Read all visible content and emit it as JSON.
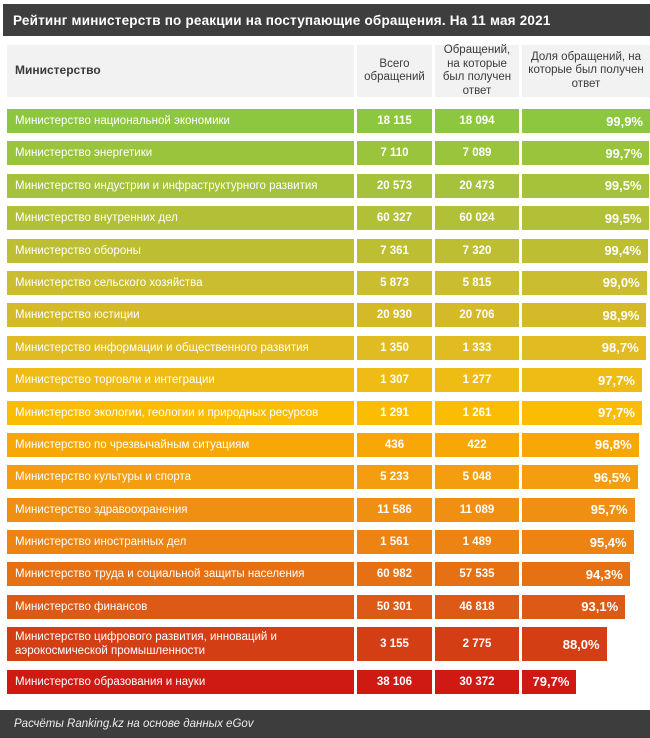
{
  "title": "Рейтинг министерств по реакции на поступающие обращения. На 11 мая 2021",
  "footer_note": "Расчёты Ranking.kz на основе данных eGov",
  "columns": {
    "ministry": "Министерство",
    "total": "Всего обращений",
    "answered": "Обращений, на которые был получен ответ",
    "share": "Доля обращений, на которые был получен ответ"
  },
  "colors": {
    "title_bg": "#3e3e3e",
    "footer_bg": "#3d3d3d",
    "header_bg": "#f2f2f2",
    "text_light": "#ffffff",
    "text_dark": "#3a3a3a"
  },
  "chart_data": {
    "type": "table",
    "title": "Рейтинг министерств по реакции на поступающие обращения. На 11 мая 2021",
    "columns": [
      "Министерство",
      "Всего обращений",
      "Обращений, на которые был получен ответ",
      "Доля обращений, на которые был получен ответ"
    ],
    "layout": {
      "legend": "none",
      "share_column_rendered_as": "data-bar",
      "bar_scale": {
        "min": 79.7,
        "max": 99.9,
        "min_width_pct": 42.5
      }
    },
    "rows": [
      {
        "ministry": "Министерство национальной экономики",
        "total": "18 115",
        "answered": "18 094",
        "share": "99,9%",
        "share_value": 99.9,
        "color": "#8dc63f"
      },
      {
        "ministry": "Министерство энергетики",
        "total": "7 110",
        "answered": "7 089",
        "share": "99,7%",
        "share_value": 99.7,
        "color": "#99c43c"
      },
      {
        "ministry": "Министерство индустрии и инфраструктурного развития",
        "total": "20 573",
        "answered": "20 473",
        "share": "99,5%",
        "share_value": 99.5,
        "color": "#a5c23a"
      },
      {
        "ministry": "Министерство внутренних дел",
        "total": "60 327",
        "answered": "60 024",
        "share": "99,5%",
        "share_value": 99.5,
        "color": "#b2c037"
      },
      {
        "ministry": "Министерство обороны",
        "total": "7 361",
        "answered": "7 320",
        "share": "99,4%",
        "share_value": 99.4,
        "color": "#bebe33"
      },
      {
        "ministry": "Министерство сельского хозяйства",
        "total": "5 873",
        "answered": "5 815",
        "share": "99,0%",
        "share_value": 99.0,
        "color": "#cabd2f"
      },
      {
        "ministry": "Министерство юстиции",
        "total": "20 930",
        "answered": "20 706",
        "share": "98,9%",
        "share_value": 98.9,
        "color": "#d4ba29"
      },
      {
        "ministry": "Министерство информации и общественного развития",
        "total": "1 350",
        "answered": "1 333",
        "share": "98,7%",
        "share_value": 98.7,
        "color": "#e0bb21"
      },
      {
        "ministry": "Министерство торговли и интеграции",
        "total": "1 307",
        "answered": "1 277",
        "share": "97,7%",
        "share_value": 97.7,
        "color": "#eebc14"
      },
      {
        "ministry": "Министерство экологии, геологии и природных ресурсов",
        "total": "1 291",
        "answered": "1 261",
        "share": "97,7%",
        "share_value": 97.7,
        "color": "#fbbd04"
      },
      {
        "ministry": "Министерство по чрезвычайным ситуациям",
        "total": "436",
        "answered": "422",
        "share": "96,8%",
        "share_value": 96.8,
        "color": "#f8a806"
      },
      {
        "ministry": "Министерство культуры и спорта",
        "total": "5 233",
        "answered": "5 048",
        "share": "96,5%",
        "share_value": 96.5,
        "color": "#f39d0f"
      },
      {
        "ministry": "Министерство здравоохранения",
        "total": "11 586",
        "answered": "11 089",
        "share": "95,7%",
        "share_value": 95.7,
        "color": "#f09012"
      },
      {
        "ministry": "Министерство иностранных дел",
        "total": "1 561",
        "answered": "1 489",
        "share": "95,4%",
        "share_value": 95.4,
        "color": "#ec8313"
      },
      {
        "ministry": "Министерство труда и социальной защиты населения",
        "total": "60 982",
        "answered": "57 535",
        "share": "94,3%",
        "share_value": 94.3,
        "color": "#e57114"
      },
      {
        "ministry": "Министерство финансов",
        "total": "50 301",
        "answered": "46 818",
        "share": "93,1%",
        "share_value": 93.1,
        "color": "#dc5a16"
      },
      {
        "ministry": "Министерство цифрового развития, инноваций и аэрокосмической промышленности",
        "total": "3 155",
        "answered": "2 775",
        "share": "88,0%",
        "share_value": 88.0,
        "color": "#d43e14"
      },
      {
        "ministry": "Министерство образования и науки",
        "total": "38 106",
        "answered": "30 372",
        "share": "79,7%",
        "share_value": 79.7,
        "color": "#ce1a12"
      }
    ]
  }
}
